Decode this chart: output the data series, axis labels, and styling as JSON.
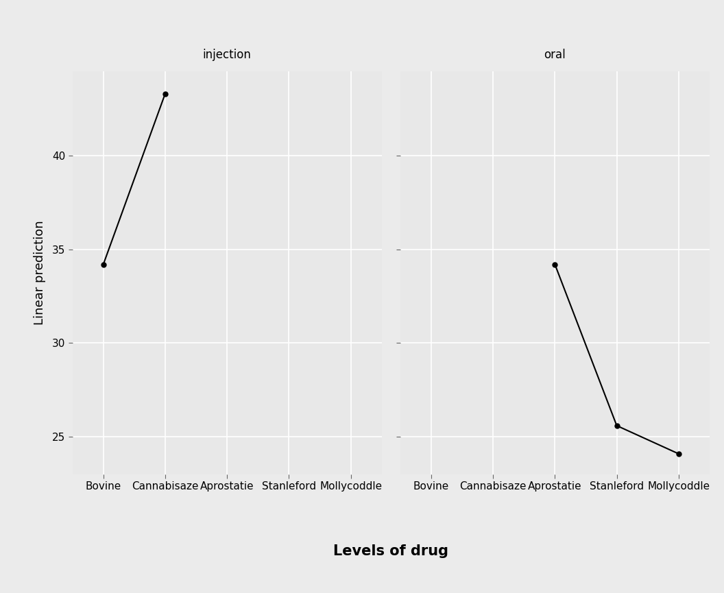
{
  "panels": [
    "injection",
    "oral"
  ],
  "drug_labels": [
    "Bovine",
    "Cannabisaze",
    "Aprostatie",
    "Stanleford",
    "Mollycoddle"
  ],
  "injection_data": {
    "x": [
      0,
      1
    ],
    "y": [
      34.2,
      43.3
    ]
  },
  "oral_data": {
    "x": [
      2,
      3,
      4
    ],
    "y": [
      34.2,
      25.6,
      24.1
    ]
  },
  "ylim": [
    23.0,
    44.5
  ],
  "yticks": [
    25,
    30,
    35,
    40
  ],
  "ylabel": "Linear prediction",
  "xlabel": "Levels of drug",
  "fig_bg": "#ebebeb",
  "strip_bg": "#d9d9d9",
  "plot_bg": "#e8e8e8",
  "grid_color": "#ffffff",
  "line_color": "#000000",
  "marker_color": "#000000",
  "strip_fontsize": 12,
  "axis_label_fontsize": 15,
  "tick_label_fontsize": 11,
  "ylabel_fontsize": 13
}
